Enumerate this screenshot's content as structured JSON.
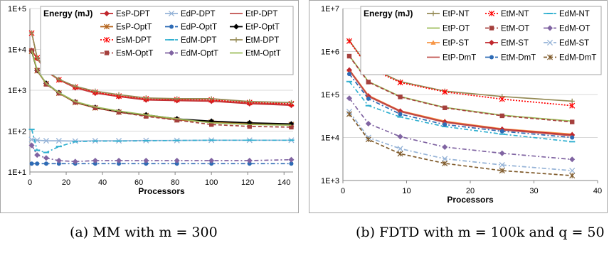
{
  "captions": {
    "a": "(a) MM with m = 300",
    "b": "(b) FDTD with m = 100k and q = 50"
  },
  "chart_data": [
    {
      "type": "line",
      "panel": "a",
      "ylabel_inside": "Energy (mJ)",
      "xlabel": "Processors",
      "y_scale": "log",
      "ylim": [
        10,
        100000
      ],
      "xlim": [
        0,
        145
      ],
      "xticks": [
        0,
        20,
        40,
        60,
        80,
        100,
        120,
        140
      ],
      "yticks": [
        "1E+1",
        "1E+2",
        "1E+3",
        "1E+4",
        "1E+5"
      ],
      "grid": true,
      "legend_position": "top-right",
      "legend_columns": 3,
      "series": [
        {
          "name": "EsP-DPT",
          "color": "#c0272d",
          "marker": "diamond",
          "dash": "solid",
          "x": [
            1,
            4,
            9,
            16,
            25,
            36,
            49,
            64,
            81,
            100,
            121,
            144
          ],
          "y": [
            9400,
            6000,
            2900,
            1800,
            1150,
            850,
            700,
            580,
            560,
            540,
            470,
            430
          ]
        },
        {
          "name": "EdP-DPT",
          "color": "#95b3d7",
          "marker": "x",
          "dash": "solid",
          "x": [
            1,
            4,
            9,
            16,
            25,
            36,
            49,
            64,
            81,
            100,
            121,
            144
          ],
          "y": [
            62,
            60,
            58,
            58,
            57,
            58,
            58,
            59,
            59,
            60,
            60,
            60
          ]
        },
        {
          "name": "EtP-DPT",
          "color": "#c0504d",
          "marker": "none",
          "dash": "solid",
          "x": [
            1,
            4,
            9,
            16,
            25,
            36,
            49,
            64,
            81,
            100,
            121,
            144
          ],
          "y": [
            9500,
            6100,
            2950,
            1820,
            1170,
            870,
            720,
            600,
            580,
            560,
            490,
            450
          ]
        },
        {
          "name": "EsP-OptT",
          "color": "#b5651d",
          "marker": "star",
          "dash": "solid",
          "x": [
            1,
            4,
            9,
            16,
            25,
            36,
            49,
            64,
            81,
            100,
            121,
            144
          ],
          "y": [
            9000,
            3000,
            1450,
            850,
            500,
            370,
            290,
            240,
            190,
            165,
            150,
            145
          ]
        },
        {
          "name": "EdP-OptT",
          "color": "#2e6bb5",
          "marker": "circle",
          "dash": "dashdot",
          "x": [
            1,
            4,
            9,
            16,
            25,
            36,
            49,
            64,
            81,
            100,
            121,
            144
          ],
          "y": [
            16,
            16,
            16,
            16,
            16,
            16,
            16,
            16,
            16,
            16,
            16,
            16
          ]
        },
        {
          "name": "EtP-OptT",
          "color": "#000000",
          "marker": "diamond",
          "dash": "solid",
          "x": [
            1,
            4,
            9,
            16,
            25,
            36,
            49,
            64,
            81,
            100,
            121,
            144
          ],
          "y": [
            9100,
            3050,
            1480,
            870,
            520,
            380,
            300,
            250,
            200,
            175,
            160,
            150
          ]
        },
        {
          "name": "EsM-DPT",
          "color": "#ff0000",
          "marker": "x-star",
          "dash": "dotted",
          "x": [
            1,
            4,
            9,
            16,
            25,
            36,
            49,
            64,
            81,
            100,
            121,
            144
          ],
          "y": [
            25000,
            6200,
            2950,
            1800,
            1200,
            900,
            720,
            620,
            590,
            580,
            500,
            470
          ]
        },
        {
          "name": "EdM-DPT",
          "color": "#31b0d0",
          "marker": "dash",
          "dash": "dashdot",
          "x": [
            1,
            4,
            9,
            16,
            25,
            36,
            49,
            64,
            81,
            100,
            121,
            144
          ],
          "y": [
            110,
            34,
            30,
            42,
            55,
            57,
            57,
            58,
            59,
            60,
            60,
            60
          ]
        },
        {
          "name": "EtM-DPT",
          "color": "#948a54",
          "marker": "plus",
          "dash": "solid",
          "x": [
            1,
            4,
            9,
            16,
            25,
            36,
            49,
            64,
            81,
            100,
            121,
            144
          ],
          "y": [
            25500,
            6300,
            3000,
            1850,
            1250,
            950,
            780,
            650,
            620,
            620,
            530,
            500
          ]
        },
        {
          "name": "EsM-OptT",
          "color": "#a5403d",
          "marker": "square",
          "dash": "dashed",
          "x": [
            1,
            4,
            9,
            16,
            25,
            36,
            49,
            64,
            81,
            100,
            121,
            144
          ],
          "y": [
            9300,
            3100,
            1400,
            850,
            510,
            370,
            290,
            230,
            185,
            145,
            130,
            125
          ]
        },
        {
          "name": "EdM-OptT",
          "color": "#8064a2",
          "marker": "diamond",
          "dash": "dashdot",
          "x": [
            1,
            4,
            9,
            16,
            25,
            36,
            49,
            64,
            81,
            100,
            121,
            144
          ],
          "y": [
            45,
            26,
            22,
            19,
            18,
            19,
            19,
            19,
            19,
            19,
            19,
            20
          ]
        },
        {
          "name": "EtM-OptT",
          "color": "#9bbb59",
          "marker": "none",
          "dash": "solid",
          "x": [
            1,
            4,
            9,
            16,
            25,
            36,
            49,
            64,
            81,
            100,
            121,
            144
          ],
          "y": [
            9400,
            3150,
            1450,
            870,
            530,
            390,
            310,
            250,
            200,
            160,
            145,
            140
          ]
        }
      ]
    },
    {
      "type": "line",
      "panel": "b",
      "ylabel_inside": "Energy (mJ)",
      "xlabel": "Processors",
      "y_scale": "log",
      "ylim": [
        1000,
        10000000
      ],
      "xlim": [
        0,
        40
      ],
      "xticks": [
        0,
        10,
        20,
        30,
        40
      ],
      "yticks": [
        "1E+3",
        "1E+4",
        "1E+5",
        "1E+6",
        "1E+7"
      ],
      "grid": true,
      "legend_position": "top-right",
      "legend_columns": 3,
      "series": [
        {
          "name": "EtP-NT",
          "color": "#948a54",
          "marker": "plus",
          "dash": "solid",
          "x": [
            1,
            4,
            9,
            16,
            25,
            36
          ],
          "y": [
            1800000,
            440000,
            200000,
            120000,
            90000,
            70000
          ]
        },
        {
          "name": "EtM-NT",
          "color": "#ff0000",
          "marker": "x-star",
          "dash": "dotted",
          "x": [
            1,
            4,
            9,
            16,
            25,
            36
          ],
          "y": [
            1750000,
            420000,
            190000,
            115000,
            78000,
            55000
          ]
        },
        {
          "name": "EdM-NT",
          "color": "#31b0d0",
          "marker": "dash",
          "dash": "dashdot",
          "x": [
            1,
            4,
            9,
            16,
            25,
            36
          ],
          "y": [
            200000,
            55000,
            30000,
            18000,
            12000,
            8000
          ]
        },
        {
          "name": "EtP-OT",
          "color": "#9bbb59",
          "marker": "none",
          "dash": "solid",
          "x": [
            1,
            4,
            9,
            16,
            25,
            36
          ],
          "y": [
            800000,
            200000,
            90000,
            50000,
            33000,
            24000
          ]
        },
        {
          "name": "EtM-OT",
          "color": "#a5403d",
          "marker": "square",
          "dash": "dashed",
          "x": [
            1,
            4,
            9,
            16,
            25,
            36
          ],
          "y": [
            780000,
            195000,
            88000,
            49000,
            32000,
            23000
          ]
        },
        {
          "name": "EdM-OT",
          "color": "#8064a2",
          "marker": "diamond",
          "dash": "dashdot",
          "x": [
            1,
            4,
            9,
            16,
            25,
            36
          ],
          "y": [
            82000,
            21000,
            10500,
            6000,
            4300,
            3100
          ]
        },
        {
          "name": "EtP-ST",
          "color": "#f79646",
          "marker": "triangle",
          "dash": "solid",
          "x": [
            1,
            4,
            9,
            16,
            25,
            36
          ],
          "y": [
            380000,
            95000,
            42000,
            24000,
            16000,
            12000
          ]
        },
        {
          "name": "EtM-ST",
          "color": "#c0272d",
          "marker": "diamond",
          "dash": "solid",
          "x": [
            1,
            4,
            9,
            16,
            25,
            36
          ],
          "y": [
            370000,
            92000,
            41000,
            23000,
            15500,
            11500
          ]
        },
        {
          "name": "EdM-ST",
          "color": "#95b3d7",
          "marker": "x",
          "dash": "dashdot",
          "x": [
            1,
            4,
            9,
            16,
            25,
            36
          ],
          "y": [
            40000,
            10000,
            5500,
            3200,
            2300,
            1700
          ]
        },
        {
          "name": "EtP-DmT",
          "color": "#c0504d",
          "marker": "none",
          "dash": "solid",
          "x": [
            1,
            4,
            9,
            16,
            25,
            36
          ],
          "y": [
            360000,
            90000,
            40000,
            22500,
            15000,
            11000
          ]
        },
        {
          "name": "EtM-DmT",
          "color": "#2e6bb5",
          "marker": "circle",
          "dash": "dashdot",
          "x": [
            1,
            4,
            9,
            16,
            25,
            36
          ],
          "y": [
            300000,
            80000,
            35000,
            20000,
            14000,
            10000
          ]
        },
        {
          "name": "EdM-DmT",
          "color": "#7f5a2a",
          "marker": "star",
          "dash": "dashed",
          "x": [
            1,
            4,
            9,
            16,
            25,
            36
          ],
          "y": [
            35000,
            9000,
            4200,
            2500,
            1700,
            1300
          ]
        }
      ]
    }
  ]
}
